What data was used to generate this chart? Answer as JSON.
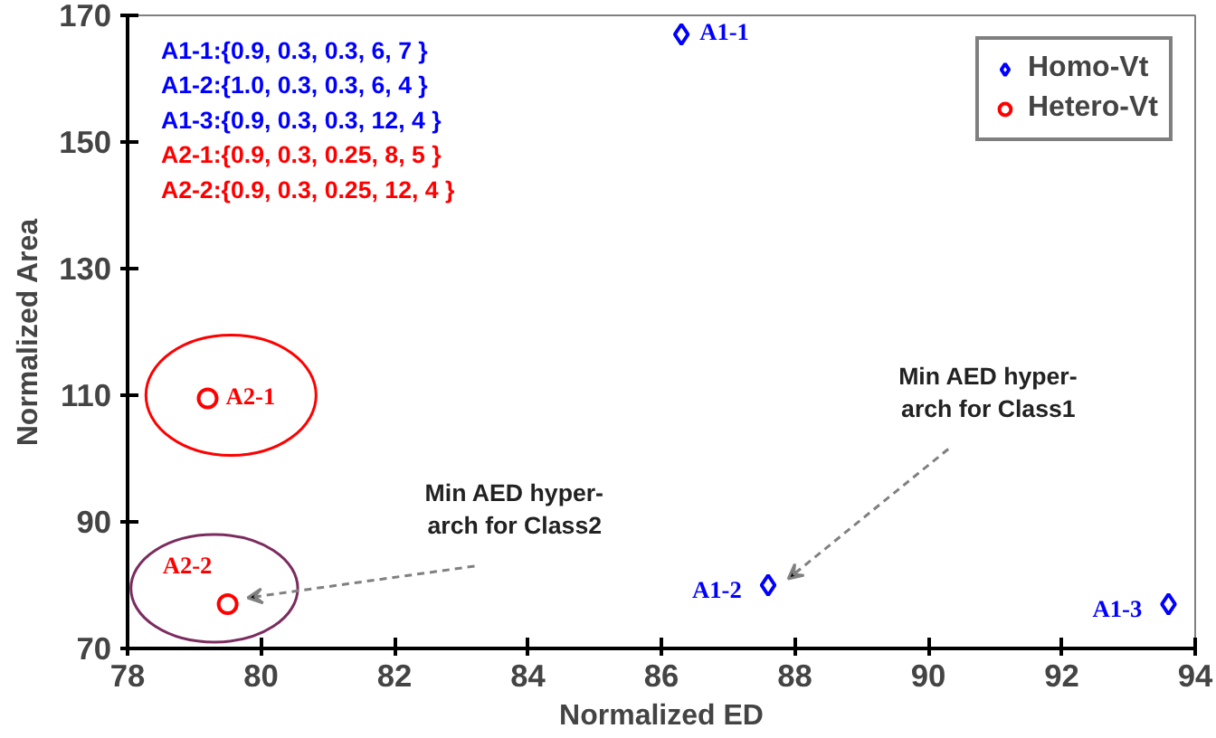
{
  "chart_data": {
    "type": "scatter",
    "xlabel": "Normalized ED",
    "ylabel": "Normalized Area",
    "xlim": [
      78,
      94
    ],
    "xticks": [
      78,
      80,
      82,
      84,
      86,
      88,
      90,
      92,
      94
    ],
    "ylim": [
      70,
      170
    ],
    "yticks": [
      70,
      90,
      110,
      130,
      150,
      170
    ],
    "grid": false,
    "legend": "top right",
    "series": [
      {
        "name": "Homo-Vt",
        "color": "#0000ff",
        "marker": "diamond",
        "x": [
          86.3,
          87.6,
          93.6
        ],
        "values": [
          167,
          80,
          77
        ],
        "value_labels": [
          "A1-1",
          "A1-2",
          "A1-3"
        ]
      },
      {
        "name": "Hetero-Vt",
        "color": "#ff0000",
        "marker": "circle",
        "x": [
          79.2,
          79.5
        ],
        "values": [
          109.5,
          77
        ],
        "value_labels": [
          "A2-1",
          "A2-2"
        ]
      }
    ],
    "annotations": [
      "A1-1:{0.9, 0.3,  0.3,   6,   7 }",
      "A1-2:{1.0, 0.3,  0.3,   6,   4 }",
      "A1-3:{0.9, 0.3,  0.3,   12, 4 }",
      "A2-1:{0.9, 0.3,  0.25, 8,   5 }",
      "A2-2:{0.9, 0.3,  0.25, 12, 4 }",
      "Min AED hyper-\narch for Class1",
      "Min AED hyper-\narch for Class2"
    ]
  }
}
